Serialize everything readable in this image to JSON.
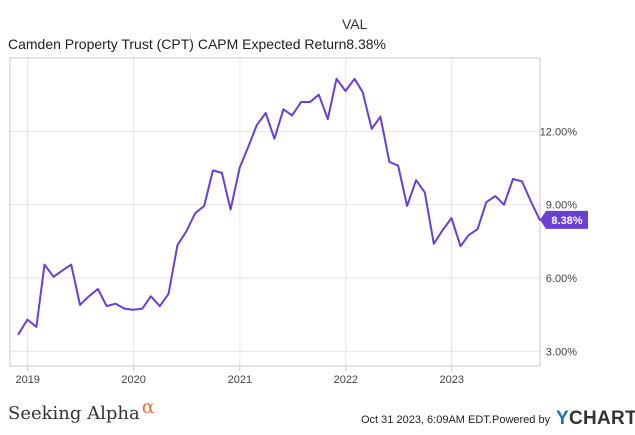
{
  "legend": {
    "header": "VAL",
    "series_name": "Camden Property Trust (CPT) CAPM Expected Return",
    "series_value": "8.38%"
  },
  "footer": {
    "brand": "Seeking Alpha",
    "brand_mark": "α",
    "timestamp": "Oct 31 2023, 6:09AM EDT.",
    "powered_by": "Powered by",
    "provider_mark": "Y",
    "provider": "CHARTS"
  },
  "colors": {
    "line": "#6a3fd4",
    "grid": "#e6e6e6",
    "axis": "#c8c8c8",
    "label": "#444444",
    "badge": "#6a3fd4",
    "badge_text": "#ffffff"
  },
  "chart_data": {
    "type": "line",
    "title": "",
    "xlabel": "",
    "ylabel": "",
    "x_tick_labels": [
      "2019",
      "2020",
      "2021",
      "2022",
      "2023"
    ],
    "y_tick_labels": [
      "3.00%",
      "6.00%",
      "9.00%",
      "12.00%"
    ],
    "y_ticks": [
      3,
      6,
      9,
      12
    ],
    "ylim": [
      2.4,
      15.0
    ],
    "xlim": [
      "2018-11-01",
      "2023-11-01"
    ],
    "grid": true,
    "last_value_label": "8.38%",
    "series": [
      {
        "name": "Camden Property Trust (CPT) CAPM Expected Return",
        "x": [
          "2018-11-30",
          "2018-12-31",
          "2019-01-31",
          "2019-02-28",
          "2019-03-31",
          "2019-04-30",
          "2019-05-31",
          "2019-06-30",
          "2019-07-31",
          "2019-08-31",
          "2019-09-30",
          "2019-10-31",
          "2019-11-30",
          "2019-12-31",
          "2020-01-31",
          "2020-02-29",
          "2020-03-31",
          "2020-04-30",
          "2020-05-31",
          "2020-06-30",
          "2020-07-31",
          "2020-08-31",
          "2020-09-30",
          "2020-10-31",
          "2020-11-30",
          "2020-12-31",
          "2021-01-31",
          "2021-02-28",
          "2021-03-31",
          "2021-04-30",
          "2021-05-31",
          "2021-06-30",
          "2021-07-31",
          "2021-08-31",
          "2021-09-30",
          "2021-10-31",
          "2021-11-30",
          "2021-12-31",
          "2022-01-31",
          "2022-02-28",
          "2022-03-31",
          "2022-04-30",
          "2022-05-31",
          "2022-06-30",
          "2022-07-31",
          "2022-08-31",
          "2022-09-30",
          "2022-10-31",
          "2022-11-30",
          "2022-12-31",
          "2023-01-31",
          "2023-02-28",
          "2023-03-31",
          "2023-04-30",
          "2023-05-31",
          "2023-06-30",
          "2023-07-31",
          "2023-08-31",
          "2023-09-30",
          "2023-10-31"
        ],
        "y": [
          3.7,
          4.3,
          4.0,
          6.55,
          6.05,
          6.3,
          6.55,
          4.9,
          5.25,
          5.55,
          4.85,
          4.95,
          4.75,
          4.7,
          4.75,
          5.25,
          4.85,
          5.35,
          7.35,
          7.9,
          8.65,
          8.95,
          10.4,
          10.3,
          8.8,
          10.5,
          11.4,
          12.25,
          12.75,
          11.7,
          12.9,
          12.65,
          13.2,
          13.2,
          13.5,
          12.5,
          14.15,
          13.65,
          14.15,
          13.6,
          12.1,
          12.6,
          10.75,
          10.6,
          8.95,
          10.0,
          9.5,
          7.4,
          7.95,
          8.45,
          7.3,
          7.75,
          8.0,
          9.1,
          9.35,
          9.0,
          10.05,
          9.95,
          9.15,
          8.38
        ]
      }
    ]
  }
}
